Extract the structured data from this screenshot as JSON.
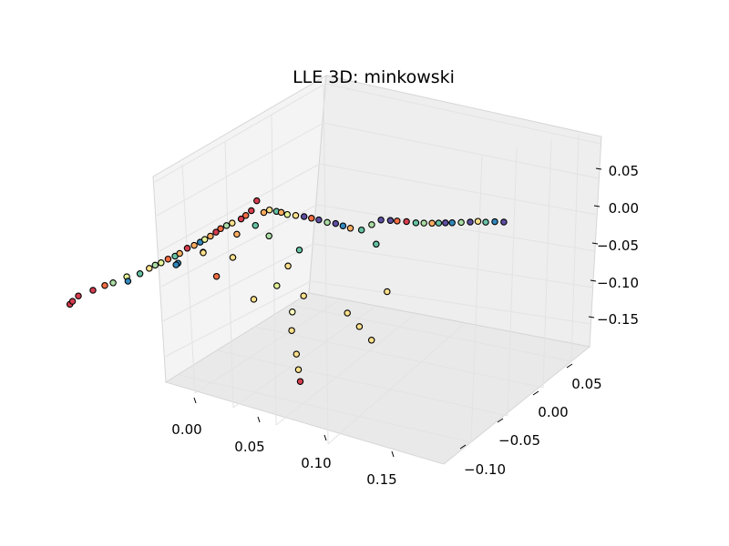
{
  "chart_data": {
    "type": "scatter",
    "projection": "3d",
    "title": "LLE 3D: minkowski",
    "grid": true,
    "colormap": [
      "#9e0142",
      "#d53e4f",
      "#f46d43",
      "#fdae61",
      "#fee08b",
      "#ffffbf",
      "#e6f598",
      "#abdda4",
      "#66c2a5",
      "#3288bd",
      "#5e4fa2"
    ],
    "x_axis": {
      "label": "",
      "ticks": [
        "0.00",
        "0.05",
        "0.10",
        "0.15"
      ]
    },
    "y_axis": {
      "label": "",
      "ticks": [
        "−0.10",
        "−0.05",
        "0.00",
        "0.05"
      ]
    },
    "z_axis": {
      "label": "",
      "ticks": [
        "0.05",
        "0.00",
        "−0.05",
        "−0.10",
        "−0.15"
      ]
    },
    "points": [
      {
        "x": 0.005,
        "y": -0.12,
        "z": -0.02,
        "color": "#d53e4f"
      },
      {
        "x": 0.007,
        "y": -0.12,
        "z": -0.015,
        "color": "#d53e4f"
      },
      {
        "x": 0.01,
        "y": -0.118,
        "z": -0.008,
        "color": "#d53e4f"
      },
      {
        "x": 0.018,
        "y": -0.114,
        "z": 0.0,
        "color": "#d53e4f"
      },
      {
        "x": 0.024,
        "y": -0.11,
        "z": 0.006,
        "color": "#f46d43"
      },
      {
        "x": 0.028,
        "y": -0.107,
        "z": 0.009,
        "color": "#abdda4"
      },
      {
        "x": 0.033,
        "y": -0.1,
        "z": 0.014,
        "color": "#e6f598"
      },
      {
        "x": 0.03,
        "y": -0.095,
        "z": 0.003,
        "color": "#3288bd"
      },
      {
        "x": 0.04,
        "y": -0.096,
        "z": 0.018,
        "color": "#66c2a5"
      },
      {
        "x": 0.044,
        "y": -0.092,
        "z": 0.024,
        "color": "#fee08b"
      },
      {
        "x": 0.047,
        "y": -0.09,
        "z": 0.028,
        "color": "#abdda4"
      },
      {
        "x": 0.05,
        "y": -0.088,
        "z": 0.031,
        "color": "#e6f598"
      },
      {
        "x": 0.053,
        "y": -0.085,
        "z": 0.035,
        "color": "#f46d43"
      },
      {
        "x": 0.056,
        "y": -0.082,
        "z": 0.038,
        "color": "#66c2a5"
      },
      {
        "x": 0.058,
        "y": -0.08,
        "z": 0.041,
        "color": "#fdae61"
      },
      {
        "x": 0.055,
        "y": -0.078,
        "z": 0.025,
        "color": "#3288bd"
      },
      {
        "x": 0.052,
        "y": -0.076,
        "z": 0.02,
        "color": "#3288bd"
      },
      {
        "x": 0.06,
        "y": -0.075,
        "z": 0.045,
        "color": "#d53e4f"
      },
      {
        "x": 0.063,
        "y": -0.072,
        "z": 0.048,
        "color": "#fdae61"
      },
      {
        "x": 0.066,
        "y": -0.07,
        "z": 0.052,
        "color": "#3288bd"
      },
      {
        "x": 0.068,
        "y": -0.068,
        "z": 0.055,
        "color": "#e6f598"
      },
      {
        "x": 0.065,
        "y": -0.066,
        "z": 0.035,
        "color": "#3288bd"
      },
      {
        "x": 0.062,
        "y": -0.062,
        "z": 0.03,
        "color": "#fee08b"
      },
      {
        "x": 0.07,
        "y": -0.065,
        "z": 0.058,
        "color": "#fdae61"
      },
      {
        "x": 0.072,
        "y": -0.062,
        "z": 0.062,
        "color": "#d53e4f"
      },
      {
        "x": 0.074,
        "y": -0.06,
        "z": 0.066,
        "color": "#f46d43"
      },
      {
        "x": 0.077,
        "y": -0.058,
        "z": 0.07,
        "color": "#abdda4"
      },
      {
        "x": 0.079,
        "y": -0.055,
        "z": 0.072,
        "color": "#fee08b"
      },
      {
        "x": 0.08,
        "y": -0.052,
        "z": 0.055,
        "color": "#fdae61"
      },
      {
        "x": 0.082,
        "y": -0.05,
        "z": 0.075,
        "color": "#d53e4f"
      },
      {
        "x": 0.084,
        "y": -0.048,
        "z": 0.079,
        "color": "#f46d43"
      },
      {
        "x": 0.086,
        "y": -0.045,
        "z": 0.084,
        "color": "#d53e4f"
      },
      {
        "x": 0.088,
        "y": -0.042,
        "z": 0.096,
        "color": "#d53e4f"
      },
      {
        "x": 0.085,
        "y": -0.04,
        "z": 0.06,
        "color": "#66c2a5"
      },
      {
        "x": 0.09,
        "y": -0.038,
        "z": 0.078,
        "color": "#fdae61"
      },
      {
        "x": 0.092,
        "y": -0.035,
        "z": 0.08,
        "color": "#fee08b"
      },
      {
        "x": 0.095,
        "y": -0.032,
        "z": 0.077,
        "color": "#66c2a5"
      },
      {
        "x": 0.097,
        "y": -0.03,
        "z": 0.075,
        "color": "#fdae61"
      },
      {
        "x": 0.1,
        "y": -0.028,
        "z": 0.072,
        "color": "#e6f598"
      },
      {
        "x": 0.104,
        "y": -0.025,
        "z": 0.07,
        "color": "#fee08b"
      },
      {
        "x": 0.108,
        "y": -0.022,
        "z": 0.068,
        "color": "#5e4fa2"
      },
      {
        "x": 0.112,
        "y": -0.02,
        "z": 0.066,
        "color": "#f46d43"
      },
      {
        "x": 0.116,
        "y": -0.018,
        "z": 0.064,
        "color": "#5e4fa2"
      },
      {
        "x": 0.12,
        "y": -0.015,
        "z": 0.06,
        "color": "#abdda4"
      },
      {
        "x": 0.124,
        "y": -0.012,
        "z": 0.058,
        "color": "#5e4fa2"
      },
      {
        "x": 0.128,
        "y": -0.01,
        "z": 0.055,
        "color": "#3288bd"
      },
      {
        "x": 0.132,
        "y": -0.008,
        "z": 0.052,
        "color": "#fdae61"
      },
      {
        "x": 0.138,
        "y": -0.005,
        "z": 0.05,
        "color": "#66c2a5"
      },
      {
        "x": 0.142,
        "y": 0.0,
        "z": 0.055,
        "color": "#abdda4"
      },
      {
        "x": 0.146,
        "y": 0.004,
        "z": 0.06,
        "color": "#5e4fa2"
      },
      {
        "x": 0.15,
        "y": 0.008,
        "z": 0.058,
        "color": "#5e4fa2"
      },
      {
        "x": 0.152,
        "y": 0.012,
        "z": 0.055,
        "color": "#f46d43"
      },
      {
        "x": 0.156,
        "y": 0.016,
        "z": 0.053,
        "color": "#d53e4f"
      },
      {
        "x": 0.16,
        "y": 0.02,
        "z": 0.05,
        "color": "#66c2a5"
      },
      {
        "x": 0.163,
        "y": 0.024,
        "z": 0.048,
        "color": "#abdda4"
      },
      {
        "x": 0.166,
        "y": 0.028,
        "z": 0.046,
        "color": "#fdae61"
      },
      {
        "x": 0.168,
        "y": 0.032,
        "z": 0.044,
        "color": "#66c2a5"
      },
      {
        "x": 0.17,
        "y": 0.036,
        "z": 0.042,
        "color": "#5e4fa2"
      },
      {
        "x": 0.172,
        "y": 0.04,
        "z": 0.04,
        "color": "#3288bd"
      },
      {
        "x": 0.175,
        "y": 0.045,
        "z": 0.038,
        "color": "#abdda4"
      },
      {
        "x": 0.178,
        "y": 0.05,
        "z": 0.036,
        "color": "#5e4fa2"
      },
      {
        "x": 0.18,
        "y": 0.055,
        "z": 0.034,
        "color": "#fee08b"
      },
      {
        "x": 0.182,
        "y": 0.06,
        "z": 0.03,
        "color": "#66c2a5"
      },
      {
        "x": 0.185,
        "y": 0.065,
        "z": 0.028,
        "color": "#3288bd"
      },
      {
        "x": 0.188,
        "y": 0.07,
        "z": 0.025,
        "color": "#5e4fa2"
      },
      {
        "x": 0.12,
        "y": -0.04,
        "z": -0.02,
        "color": "#fee08b"
      },
      {
        "x": 0.115,
        "y": -0.045,
        "z": -0.04,
        "color": "#ffffbf"
      },
      {
        "x": 0.118,
        "y": -0.05,
        "z": -0.06,
        "color": "#fee08b"
      },
      {
        "x": 0.125,
        "y": -0.055,
        "z": -0.085,
        "color": "#fee08b"
      },
      {
        "x": 0.13,
        "y": -0.06,
        "z": -0.1,
        "color": "#fee08b"
      },
      {
        "x": 0.135,
        "y": -0.065,
        "z": -0.11,
        "color": "#d53e4f"
      },
      {
        "x": 0.105,
        "y": -0.035,
        "z": 0.01,
        "color": "#fee08b"
      },
      {
        "x": 0.1,
        "y": -0.04,
        "z": -0.015,
        "color": "#e6f598"
      },
      {
        "x": 0.09,
        "y": -0.05,
        "z": -0.03,
        "color": "#fee08b"
      },
      {
        "x": 0.145,
        "y": -0.03,
        "z": -0.04,
        "color": "#fee08b"
      },
      {
        "x": 0.15,
        "y": -0.025,
        "z": -0.06,
        "color": "#fee08b"
      },
      {
        "x": 0.155,
        "y": -0.02,
        "z": -0.08,
        "color": "#fee08b"
      },
      {
        "x": 0.16,
        "y": -0.01,
        "z": -0.02,
        "color": "#fee08b"
      },
      {
        "x": 0.07,
        "y": -0.06,
        "z": 0.0,
        "color": "#f46d43"
      },
      {
        "x": 0.075,
        "y": -0.05,
        "z": 0.02,
        "color": "#fee08b"
      },
      {
        "x": 0.11,
        "y": -0.03,
        "z": 0.03,
        "color": "#66c2a5"
      },
      {
        "x": 0.095,
        "y": -0.04,
        "z": 0.05,
        "color": "#abdda4"
      },
      {
        "x": 0.145,
        "y": 0.0,
        "z": 0.03,
        "color": "#66c2a5"
      }
    ]
  }
}
